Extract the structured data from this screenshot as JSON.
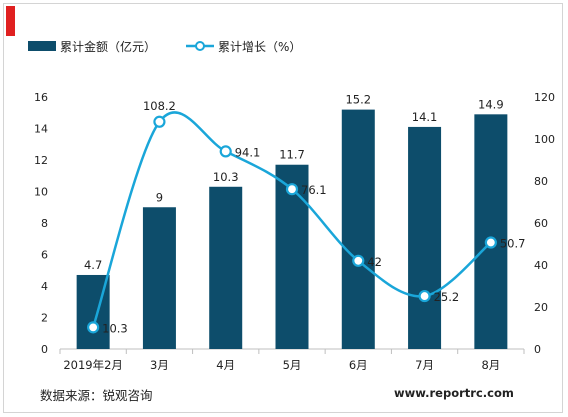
{
  "chart_data": {
    "type": "bar",
    "categories": [
      "2019年2月",
      "3月",
      "4月",
      "5月",
      "6月",
      "7月",
      "8月"
    ],
    "series": [
      {
        "name": "累计金额（亿元）",
        "kind": "bar",
        "axis": "left",
        "color": "#0d4d6b",
        "values": [
          4.7,
          9,
          10.3,
          11.7,
          15.2,
          14.1,
          14.9
        ],
        "labels": [
          "4.7",
          "9",
          "10.3",
          "11.7",
          "15.2",
          "14.1",
          "14.9"
        ]
      },
      {
        "name": "累计增长（%）",
        "kind": "line",
        "axis": "right",
        "color": "#1aa6d9",
        "values": [
          10.3,
          108.2,
          94.1,
          76.1,
          42,
          25.2,
          50.7
        ],
        "labels": [
          "10.3",
          "108.2",
          "94.1",
          "76.1",
          "42",
          "25.2",
          "50.7"
        ]
      }
    ],
    "y_left": {
      "min": 0,
      "max": 16,
      "ticks": [
        "0",
        "2",
        "4",
        "6",
        "8",
        "10",
        "12",
        "14",
        "16"
      ]
    },
    "y_right": {
      "min": 0,
      "max": 120,
      "ticks": [
        "0",
        "20",
        "40",
        "60",
        "80",
        "100",
        "120"
      ]
    },
    "legend_position": "top-left",
    "grid": false
  },
  "footer": {
    "source": "数据来源：锐观咨询",
    "website": "www.reportrc.com"
  }
}
